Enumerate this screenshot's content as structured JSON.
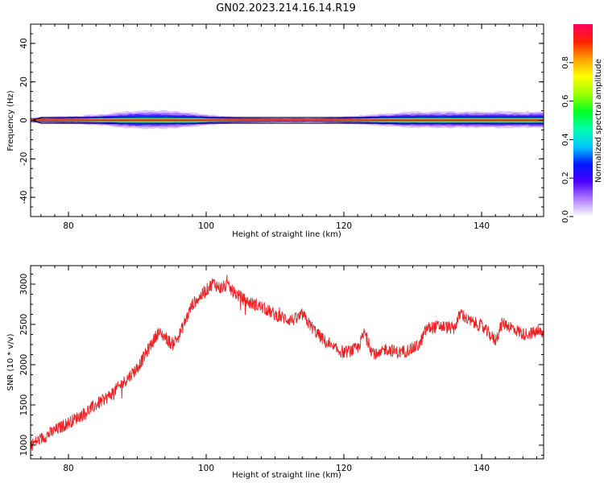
{
  "figure": {
    "title": "GN02.2023.214.16.14.R19"
  },
  "chart_data": [
    {
      "type": "heatmap",
      "title": "GN02.2023.214.16.14.R19",
      "xlabel": "Height of straight line (km)",
      "ylabel": "Frequency (Hz)",
      "xlim": [
        74.5,
        149
      ],
      "ylim": [
        -50,
        50
      ],
      "x_ticks": [
        80,
        100,
        120,
        140
      ],
      "y_ticks": [
        -40,
        -20,
        0,
        20,
        40
      ],
      "x_tick_labels": [
        "80",
        "100",
        "120",
        "140"
      ],
      "y_tick_labels": [
        "-40",
        "-20",
        "0",
        "20",
        "40"
      ],
      "colorbar": {
        "label": "Normalized spectral amplitude",
        "range": [
          0.0,
          1.0
        ],
        "ticks": [
          0.0,
          0.2,
          0.4,
          0.6,
          0.8
        ],
        "tick_labels": [
          "0.0",
          "0.2",
          "0.4",
          "0.6",
          "0.8"
        ],
        "colors": [
          "#ffffff",
          "#b07cff",
          "#4b00ff",
          "#0018ff",
          "#00c8ff",
          "#00ffb0",
          "#00ff20",
          "#9cff00",
          "#ffff00",
          "#ffa000",
          "#ff2000",
          "#ff0060"
        ]
      },
      "band": {
        "center_hz": 0,
        "profile_x": [
          74.5,
          78,
          82,
          86,
          88,
          90,
          92,
          94,
          96,
          98,
          100,
          104,
          110,
          116,
          120,
          124,
          128,
          132,
          136,
          140,
          144,
          149
        ],
        "half_width_hz": [
          1.5,
          2.0,
          2.5,
          3.5,
          4.5,
          5.0,
          5.0,
          5.0,
          4.5,
          4.0,
          3.0,
          2.0,
          1.5,
          1.5,
          2.0,
          3.0,
          4.0,
          4.5,
          4.5,
          4.5,
          4.5,
          4.5
        ]
      }
    },
    {
      "type": "line",
      "xlabel": "Height of straight line (km)",
      "ylabel": "SNR (10 * v/v)",
      "xlim": [
        74.5,
        149
      ],
      "ylim": [
        830,
        3230
      ],
      "x_ticks": [
        80,
        100,
        120,
        140
      ],
      "y_ticks": [
        1000,
        1500,
        2000,
        2500,
        3000
      ],
      "x_tick_labels": [
        "80",
        "100",
        "120",
        "140"
      ],
      "y_tick_labels": [
        "1000",
        "1500",
        "2000",
        "2500",
        "3000"
      ],
      "series_color": "#ee2020",
      "noise_amplitude": 80,
      "series": [
        {
          "x": [
            74.5,
            76,
            78,
            80,
            82,
            84,
            86,
            88,
            90,
            91,
            92,
            93,
            94,
            95,
            96,
            97,
            98,
            100,
            101,
            102,
            103,
            104,
            106,
            108,
            110,
            112,
            113,
            114,
            115,
            116,
            118,
            120,
            122,
            123,
            124,
            125,
            126,
            128,
            130,
            131,
            132,
            134,
            136,
            137,
            138,
            140,
            142,
            143,
            144,
            146,
            148,
            149
          ],
          "y": [
            1000,
            1080,
            1180,
            1280,
            1380,
            1500,
            1620,
            1780,
            1960,
            2100,
            2250,
            2400,
            2350,
            2250,
            2350,
            2550,
            2750,
            2920,
            3020,
            2950,
            2980,
            2900,
            2780,
            2720,
            2620,
            2560,
            2560,
            2620,
            2500,
            2400,
            2220,
            2150,
            2200,
            2400,
            2180,
            2100,
            2200,
            2150,
            2200,
            2250,
            2450,
            2480,
            2450,
            2650,
            2550,
            2480,
            2300,
            2520,
            2480,
            2380,
            2400,
            2400
          ]
        }
      ]
    }
  ]
}
